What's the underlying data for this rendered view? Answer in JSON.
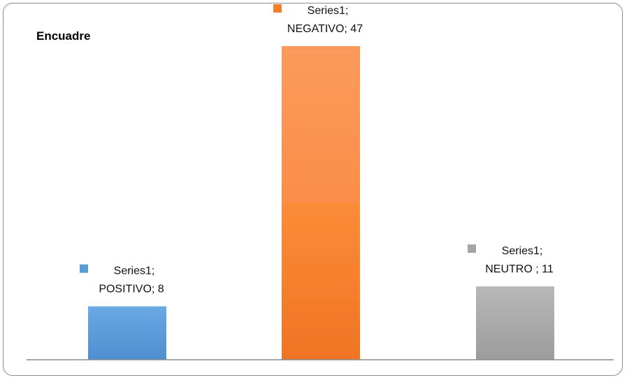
{
  "chart_data": {
    "type": "bar",
    "title": "Encuadre",
    "categories": [
      "POSITIVO",
      "NEGATIVO",
      "NEUTRO "
    ],
    "series": [
      {
        "name": "Series1",
        "values": [
          8,
          47,
          11
        ]
      }
    ],
    "data_labels": [
      {
        "line1": "Series1;",
        "line2": "POSITIVO; 8"
      },
      {
        "line1": "Series1;",
        "line2": "NEGATIVO; 47"
      },
      {
        "line1": "Series1;",
        "line2": "NEUTRO ; 11"
      }
    ],
    "colors": [
      "#5b9bd5",
      "#f47f2a",
      "#a5a5a5"
    ],
    "ylim": [
      0,
      47
    ],
    "grid": false,
    "legend": "none"
  }
}
